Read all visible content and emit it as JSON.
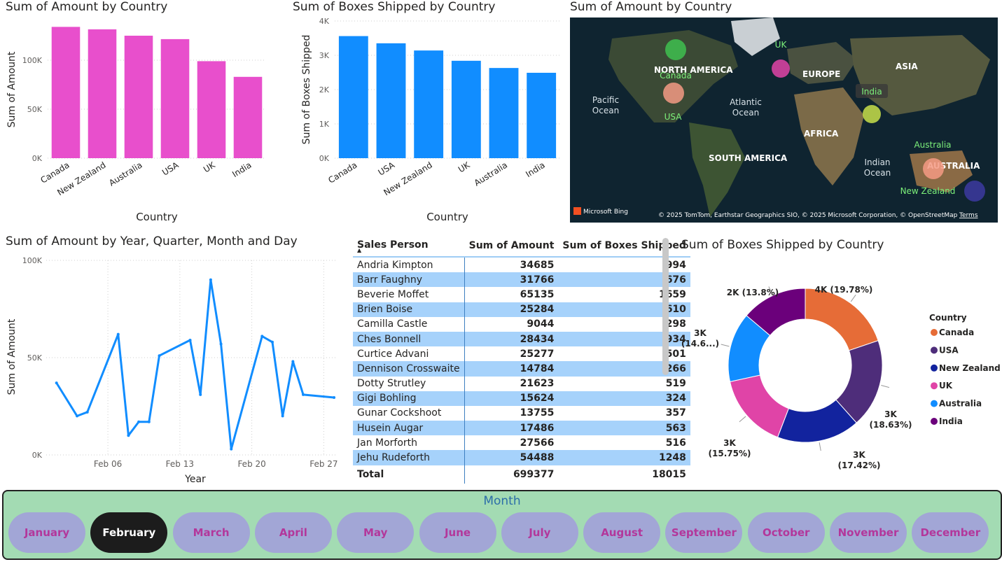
{
  "titles": {
    "bar_amount": "Sum of Amount by Country",
    "bar_boxes": "Sum of Boxes Shipped by Country",
    "map": "Sum of Amount by Country",
    "line": "Sum of Amount by Year, Quarter, Month and Day",
    "donut": "Sum of Boxes Shipped by Country"
  },
  "chart_data": [
    {
      "type": "bar",
      "title": "Sum of Amount by Country",
      "xlabel": "Country",
      "ylabel": "Sum of Amount",
      "categories": [
        "Canada",
        "New Zealand",
        "Australia",
        "USA",
        "UK",
        "India"
      ],
      "values": [
        134000,
        131500,
        125000,
        121500,
        99000,
        83000
      ],
      "ylim": [
        0,
        140000
      ],
      "yticks": [
        "0K",
        "50K",
        "100K"
      ],
      "ytick_values": [
        0,
        50000,
        100000
      ],
      "color": "#e84fcc",
      "grid": true
    },
    {
      "type": "bar",
      "title": "Sum of Boxes Shipped by Country",
      "xlabel": "Country",
      "ylabel": "Sum of Boxes Shipped",
      "categories": [
        "Canada",
        "USA",
        "New Zealand",
        "UK",
        "Australia",
        "India"
      ],
      "values": [
        3560,
        3350,
        3140,
        2840,
        2630,
        2490
      ],
      "ylim": [
        0,
        4000
      ],
      "yticks": [
        "0K",
        "1K",
        "2K",
        "3K",
        "4K"
      ],
      "ytick_values": [
        0,
        1000,
        2000,
        3000,
        4000
      ],
      "color": "#118dff",
      "grid": true
    },
    {
      "type": "line",
      "title": "Sum of Amount by Year, Quarter, Month and Day",
      "xlabel": "Year",
      "ylabel": "Sum of Amount",
      "x": [
        "2/1",
        "2/3",
        "2/4",
        "2/7",
        "2/8",
        "2/9",
        "2/10",
        "2/11",
        "2/14",
        "2/15",
        "2/16",
        "2/17",
        "2/18",
        "2/21",
        "2/22",
        "2/23",
        "2/24",
        "2/25",
        "2/28"
      ],
      "y": [
        37000,
        20000,
        22000,
        62000,
        10000,
        17000,
        17000,
        51000,
        59000,
        31000,
        90000,
        57000,
        3000,
        61000,
        58000,
        20000,
        48000,
        31000,
        29500
      ],
      "x_days": [
        1,
        3,
        4,
        7,
        8,
        9,
        10,
        11,
        14,
        15,
        16,
        17,
        18,
        21,
        22,
        23,
        24,
        25,
        28
      ],
      "xticks": [
        "Feb 06",
        "Feb 13",
        "Feb 20",
        "Feb 27"
      ],
      "xtick_days": [
        6,
        13,
        20,
        27
      ],
      "ylim": [
        0,
        100000
      ],
      "yticks": [
        "0K",
        "50K",
        "100K"
      ],
      "ytick_values": [
        0,
        50000,
        100000
      ],
      "color": "#118dff",
      "grid": true
    },
    {
      "type": "pie",
      "donut": true,
      "title": "Sum of Boxes Shipped by Country",
      "legend_title": "Country",
      "legend_position": "right",
      "labels": [
        "Canada",
        "USA",
        "New Zealand",
        "UK",
        "Australia",
        "India"
      ],
      "values": [
        3563,
        3355,
        3137,
        2837,
        2630,
        2486
      ],
      "data_labels": [
        "4K (19.78%)",
        "3K (18.63%)",
        "3K (17.42%)",
        "3K (15.75%)",
        "3K (14.6...)",
        "2K (13.8%)"
      ],
      "colors": [
        "#e66c37",
        "#4e2d7a",
        "#12239e",
        "#e044a7",
        "#118dff",
        "#6b007b"
      ]
    }
  ],
  "map": {
    "watermark": "Microsoft Bing",
    "attribution": "© 2025 TomTom, Earthstar Geographics SIO, © 2025 Microsoft Corporation, © OpenStreetMap",
    "terms": "Terms",
    "regions": [
      "NORTH AMERICA",
      "EUROPE",
      "ASIA",
      "AFRICA",
      "SOUTH AMERICA",
      "AUSTRALIA"
    ],
    "oceans": [
      "Pacific Ocean",
      "Atlantic Ocean",
      "Indian Ocean"
    ],
    "bubbles": [
      {
        "label": "Canada",
        "color": "#f59a84"
      },
      {
        "label": "USA",
        "color": "#3fbf4f"
      },
      {
        "label": "UK",
        "color": "#e044a7"
      },
      {
        "label": "India",
        "color": "#c8e04a"
      },
      {
        "label": "Australia",
        "color": "#f59a84"
      },
      {
        "label": "New Zealand",
        "color": "#3c3aa0"
      }
    ]
  },
  "table": {
    "headers": [
      "Sales Person",
      "Sum of Amount",
      "Sum of Boxes Shipped"
    ],
    "rows": [
      [
        "Andria Kimpton",
        "34685",
        "994"
      ],
      [
        "Barr Faughny",
        "31766",
        "676"
      ],
      [
        "Beverie Moffet",
        "65135",
        "1659"
      ],
      [
        "Brien Boise",
        "25284",
        "610"
      ],
      [
        "Camilla Castle",
        "9044",
        "298"
      ],
      [
        "Ches Bonnell",
        "28434",
        "934"
      ],
      [
        "Curtice Advani",
        "25277",
        "501"
      ],
      [
        "Dennison Crosswaite",
        "14784",
        "266"
      ],
      [
        "Dotty Strutley",
        "21623",
        "519"
      ],
      [
        "Gigi Bohling",
        "15624",
        "324"
      ],
      [
        "Gunar Cockshoot",
        "13755",
        "357"
      ],
      [
        "Husein Augar",
        "17486",
        "563"
      ],
      [
        "Jan Morforth",
        "27566",
        "516"
      ],
      [
        "Jehu Rudeforth",
        "54488",
        "1248"
      ]
    ],
    "total": [
      "Total",
      "699377",
      "18015"
    ]
  },
  "slicer": {
    "title": "Month",
    "months": [
      "January",
      "February",
      "March",
      "April",
      "May",
      "June",
      "July",
      "August",
      "September",
      "October",
      "November",
      "December"
    ],
    "selected": "February"
  }
}
